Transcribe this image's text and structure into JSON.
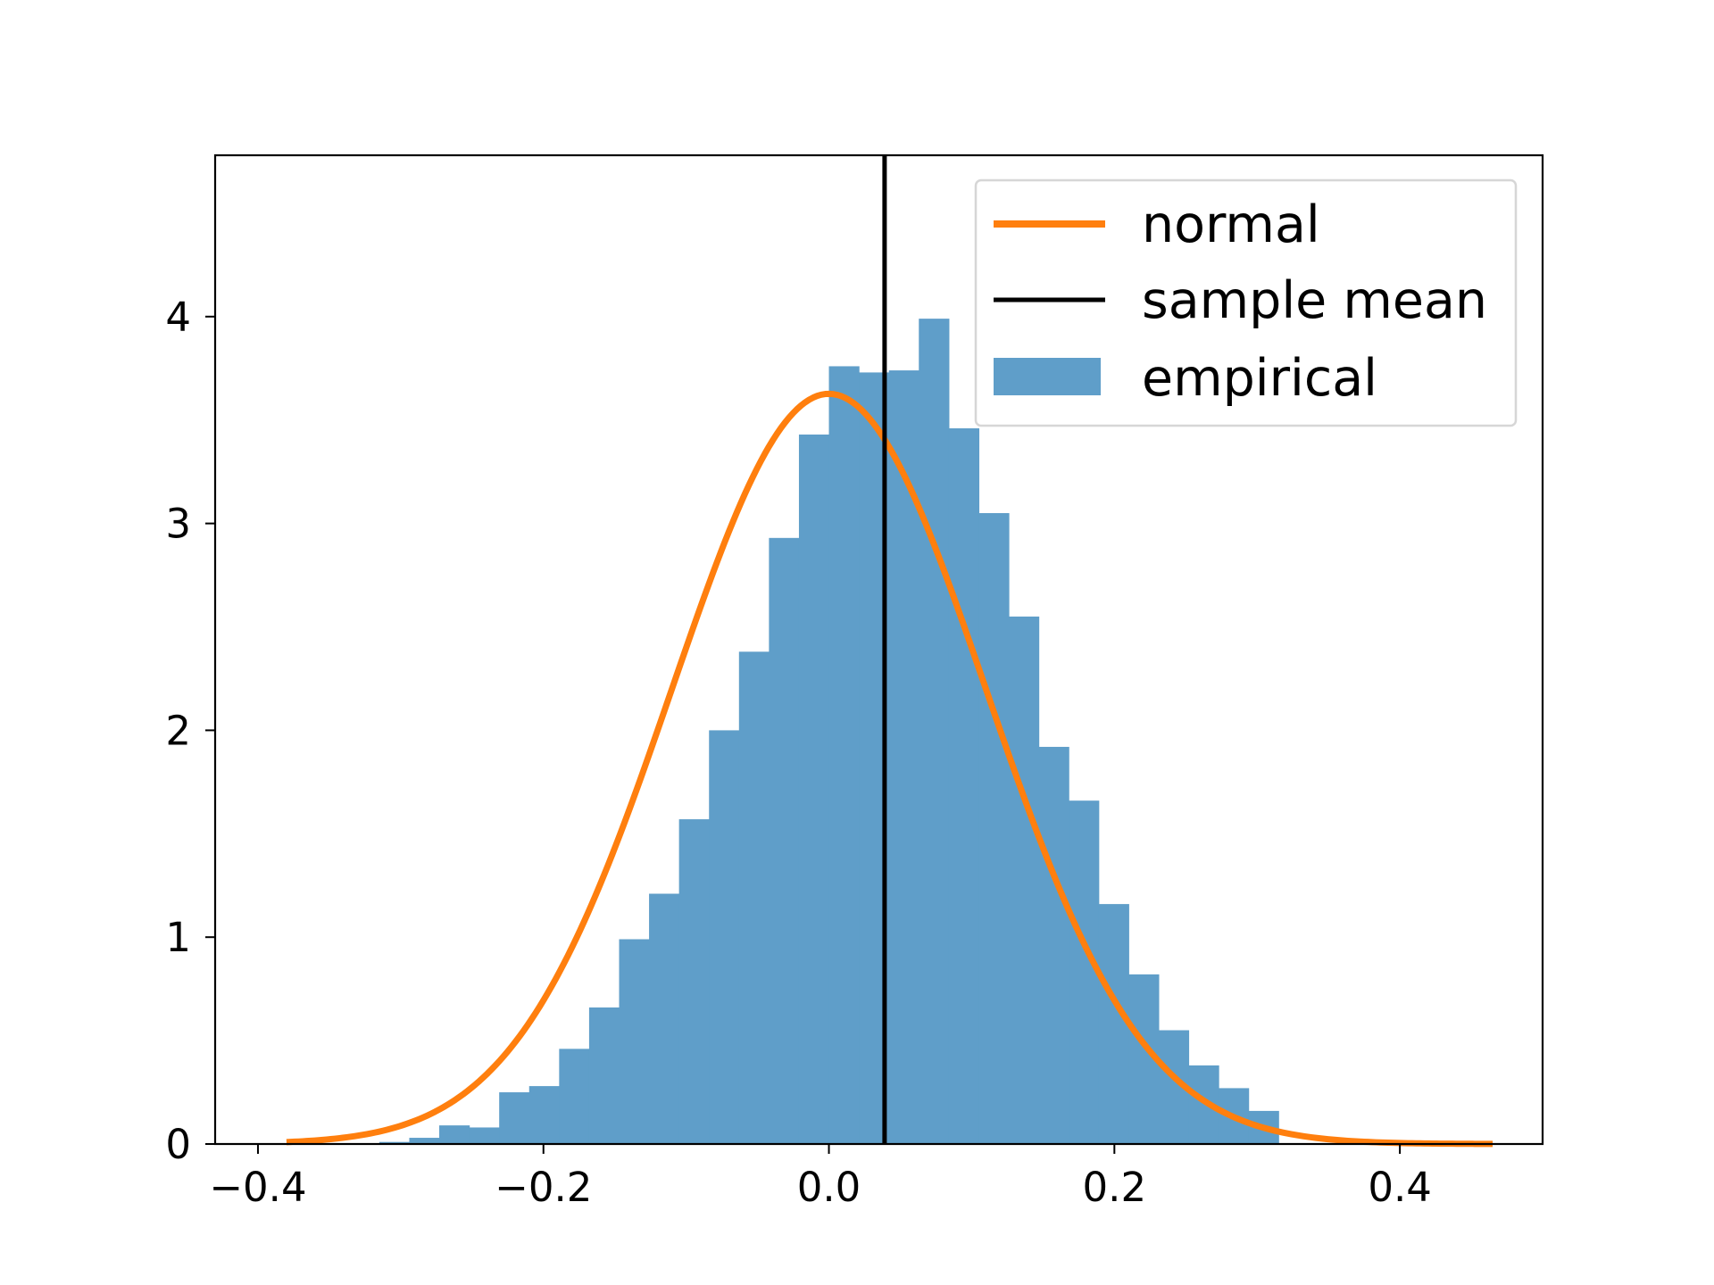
{
  "chart_data": {
    "type": "histogram",
    "title": "",
    "xlabel": "",
    "ylabel": "",
    "xlim": [
      -0.43,
      0.5
    ],
    "ylim": [
      0,
      4.78
    ],
    "grid": false,
    "legend_position": "top-right",
    "x_ticks": [
      {
        "value": -0.4,
        "label": "−0.4"
      },
      {
        "value": -0.2,
        "label": "−0.2"
      },
      {
        "value": 0.0,
        "label": "0.0"
      },
      {
        "value": 0.2,
        "label": "0.2"
      },
      {
        "value": 0.4,
        "label": "0.4"
      }
    ],
    "y_ticks": [
      {
        "value": 0,
        "label": "0"
      },
      {
        "value": 1,
        "label": "1"
      },
      {
        "value": 2,
        "label": "2"
      },
      {
        "value": 3,
        "label": "3"
      },
      {
        "value": 4,
        "label": "4"
      }
    ],
    "histogram": {
      "name": "empirical",
      "bin_start": -0.315,
      "bin_width": 0.021,
      "values": [
        0.01,
        0.03,
        0.09,
        0.08,
        0.25,
        0.28,
        0.46,
        0.66,
        0.99,
        1.21,
        1.57,
        2.0,
        2.38,
        2.93,
        3.43,
        3.76,
        3.73,
        3.74,
        3.99,
        3.46,
        3.05,
        2.55,
        1.92,
        1.66,
        1.16,
        0.82,
        0.55,
        0.38,
        0.27,
        0.16
      ]
    },
    "normal_curve": {
      "name": "normal",
      "mean": 0.0,
      "std": 0.11,
      "x_range": [
        -0.38,
        0.465
      ]
    },
    "sample_mean": {
      "name": "sample mean",
      "x": 0.039
    },
    "legend": [
      {
        "label": "normal",
        "kind": "line",
        "color": "#ff7f0e"
      },
      {
        "label": "sample mean",
        "kind": "line",
        "color": "#000000"
      },
      {
        "label": "empirical",
        "kind": "patch",
        "color": "#5f9ec9"
      }
    ],
    "colors": {
      "normal": "#ff7f0e",
      "sample_mean": "#000000",
      "empirical": "#5f9ec9"
    }
  }
}
